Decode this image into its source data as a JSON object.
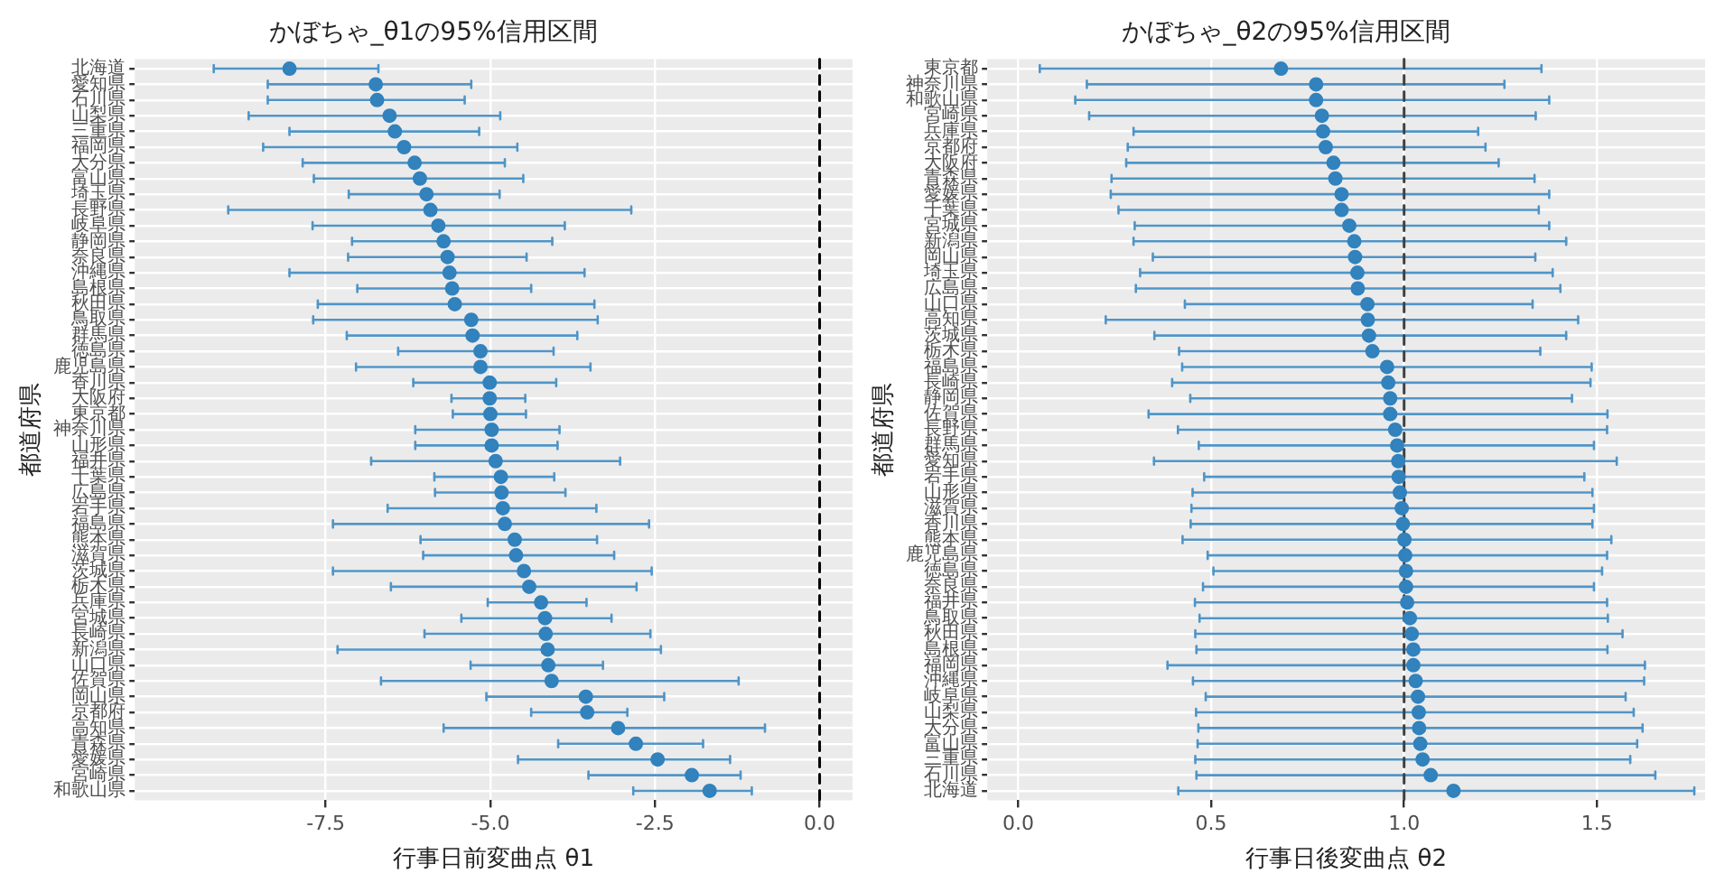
{
  "chart_data": [
    {
      "type": "scatter",
      "orientation": "horizontal",
      "title": "かぼちゃ_θ1の95%信用区間",
      "xlabel": "行事日前変曲点 θ1",
      "ylabel": "都道府県",
      "marker": "circle",
      "grid": true,
      "legend": false,
      "color": "#3182bd",
      "categories": [
        "北海道",
        "愛知県",
        "石川県",
        "山梨県",
        "三重県",
        "福岡県",
        "大分県",
        "富山県",
        "埼玉県",
        "長野県",
        "岐阜県",
        "静岡県",
        "奈良県",
        "沖縄県",
        "島根県",
        "秋田県",
        "鳥取県",
        "群馬県",
        "徳島県",
        "鹿児島県",
        "香川県",
        "大阪府",
        "東京都",
        "神奈川県",
        "山形県",
        "福井県",
        "千葉県",
        "広島県",
        "岩手県",
        "福島県",
        "熊本県",
        "滋賀県",
        "茨城県",
        "栃木県",
        "兵庫県",
        "宮城県",
        "長崎県",
        "新潟県",
        "山口県",
        "佐賀県",
        "岡山県",
        "京都府",
        "高知県",
        "青森県",
        "愛媛県",
        "宮崎県",
        "和歌山県"
      ],
      "values": [
        -8.05,
        -6.74,
        -6.72,
        -6.53,
        -6.45,
        -6.31,
        -6.15,
        -6.07,
        -5.97,
        -5.91,
        -5.79,
        -5.71,
        -5.65,
        -5.62,
        -5.58,
        -5.54,
        -5.29,
        -5.27,
        -5.15,
        -5.15,
        -5.01,
        -5.01,
        -5.0,
        -4.98,
        -4.98,
        -4.92,
        -4.84,
        -4.83,
        -4.81,
        -4.78,
        -4.63,
        -4.61,
        -4.49,
        -4.41,
        -4.23,
        -4.17,
        -4.16,
        -4.13,
        -4.12,
        -4.07,
        -3.55,
        -3.53,
        -3.06,
        -2.79,
        -2.46,
        -1.94,
        -1.67
      ],
      "errors": [
        [
          -9.2,
          -6.7
        ],
        [
          -8.38,
          -5.29
        ],
        [
          -8.38,
          -5.39
        ],
        [
          -8.67,
          -4.85
        ],
        [
          -8.05,
          -5.17
        ],
        [
          -8.45,
          -4.59
        ],
        [
          -7.85,
          -4.78
        ],
        [
          -7.68,
          -4.5
        ],
        [
          -7.15,
          -4.86
        ],
        [
          -8.98,
          -2.86
        ],
        [
          -7.7,
          -3.87
        ],
        [
          -7.1,
          -4.06
        ],
        [
          -7.16,
          -4.45
        ],
        [
          -8.05,
          -3.57
        ],
        [
          -7.02,
          -4.38
        ],
        [
          -7.62,
          -3.42
        ],
        [
          -7.69,
          -3.37
        ],
        [
          -7.18,
          -3.68
        ],
        [
          -6.4,
          -4.04
        ],
        [
          -7.04,
          -3.48
        ],
        [
          -6.17,
          -4.0
        ],
        [
          -5.59,
          -4.47
        ],
        [
          -5.57,
          -4.46
        ],
        [
          -6.14,
          -3.95
        ],
        [
          -6.14,
          -3.98
        ],
        [
          -6.81,
          -3.03
        ],
        [
          -5.85,
          -4.03
        ],
        [
          -5.84,
          -3.86
        ],
        [
          -6.56,
          -3.39
        ],
        [
          -7.39,
          -2.59
        ],
        [
          -6.06,
          -3.38
        ],
        [
          -6.02,
          -3.12
        ],
        [
          -7.39,
          -2.55
        ],
        [
          -6.51,
          -2.78
        ],
        [
          -5.04,
          -3.54
        ],
        [
          -5.44,
          -3.16
        ],
        [
          -6.0,
          -2.57
        ],
        [
          -7.32,
          -2.41
        ],
        [
          -5.3,
          -3.29
        ],
        [
          -6.66,
          -1.23
        ],
        [
          -5.06,
          -2.36
        ],
        [
          -4.38,
          -2.92
        ],
        [
          -5.71,
          -0.83
        ],
        [
          -3.97,
          -1.77
        ],
        [
          -4.58,
          -1.36
        ],
        [
          -3.51,
          -1.2
        ],
        [
          -2.83,
          -1.03
        ]
      ],
      "xlim": [
        -10.4,
        0.5
      ],
      "xticks": [
        {
          "value": -7.5,
          "label": "-7.5"
        },
        {
          "value": -5,
          "label": "-5.0"
        },
        {
          "value": -2.5,
          "label": "-2.5"
        },
        {
          "value": 0,
          "label": "0.0"
        }
      ],
      "ref_lines": [
        {
          "axis": "x",
          "value": 0,
          "color": "#000000",
          "line_style": "dashed"
        }
      ]
    },
    {
      "type": "scatter",
      "orientation": "horizontal",
      "title": "かぼちゃ_θ2の95%信用区間",
      "xlabel": "行事日後変曲点 θ2",
      "ylabel": "都道府県",
      "marker": "circle",
      "grid": true,
      "legend": false,
      "color": "#3182bd",
      "categories": [
        "東京都",
        "神奈川県",
        "和歌山県",
        "宮崎県",
        "兵庫県",
        "京都府",
        "大阪府",
        "青森県",
        "愛媛県",
        "千葉県",
        "宮城県",
        "新潟県",
        "岡山県",
        "埼玉県",
        "広島県",
        "山口県",
        "高知県",
        "茨城県",
        "栃木県",
        "福島県",
        "長崎県",
        "静岡県",
        "佐賀県",
        "長野県",
        "群馬県",
        "愛知県",
        "岩手県",
        "山形県",
        "滋賀県",
        "香川県",
        "熊本県",
        "鹿児島県",
        "徳島県",
        "奈良県",
        "福井県",
        "鳥取県",
        "秋田県",
        "島根県",
        "福岡県",
        "沖縄県",
        "岐阜県",
        "山梨県",
        "大分県",
        "富山県",
        "三重県",
        "石川県",
        "北海道"
      ],
      "values": [
        0.681,
        0.772,
        0.772,
        0.787,
        0.79,
        0.797,
        0.817,
        0.822,
        0.838,
        0.838,
        0.858,
        0.871,
        0.873,
        0.879,
        0.88,
        0.905,
        0.906,
        0.909,
        0.918,
        0.956,
        0.959,
        0.964,
        0.964,
        0.977,
        0.982,
        0.985,
        0.986,
        0.989,
        0.994,
        0.997,
        1.001,
        1.003,
        1.005,
        1.005,
        1.008,
        1.015,
        1.02,
        1.024,
        1.024,
        1.03,
        1.036,
        1.038,
        1.039,
        1.042,
        1.048,
        1.069,
        1.128
      ],
      "errors": [
        [
          0.056,
          1.356
        ],
        [
          0.178,
          1.26
        ],
        [
          0.148,
          1.376
        ],
        [
          0.184,
          1.341
        ],
        [
          0.299,
          1.192
        ],
        [
          0.284,
          1.211
        ],
        [
          0.28,
          1.245
        ],
        [
          0.242,
          1.338
        ],
        [
          0.24,
          1.376
        ],
        [
          0.26,
          1.349
        ],
        [
          0.302,
          1.376
        ],
        [
          0.299,
          1.42
        ],
        [
          0.349,
          1.34
        ],
        [
          0.316,
          1.385
        ],
        [
          0.305,
          1.405
        ],
        [
          0.432,
          1.333
        ],
        [
          0.227,
          1.451
        ],
        [
          0.353,
          1.42
        ],
        [
          0.417,
          1.353
        ],
        [
          0.425,
          1.486
        ],
        [
          0.399,
          1.483
        ],
        [
          0.446,
          1.435
        ],
        [
          0.338,
          1.527
        ],
        [
          0.414,
          1.526
        ],
        [
          0.468,
          1.492
        ],
        [
          0.352,
          1.551
        ],
        [
          0.482,
          1.467
        ],
        [
          0.452,
          1.488
        ],
        [
          0.449,
          1.492
        ],
        [
          0.447,
          1.488
        ],
        [
          0.426,
          1.537
        ],
        [
          0.491,
          1.526
        ],
        [
          0.506,
          1.513
        ],
        [
          0.479,
          1.492
        ],
        [
          0.458,
          1.526
        ],
        [
          0.47,
          1.528
        ],
        [
          0.459,
          1.566
        ],
        [
          0.462,
          1.527
        ],
        [
          0.387,
          1.624
        ],
        [
          0.453,
          1.622
        ],
        [
          0.486,
          1.574
        ],
        [
          0.461,
          1.595
        ],
        [
          0.467,
          1.618
        ],
        [
          0.465,
          1.604
        ],
        [
          0.459,
          1.586
        ],
        [
          0.462,
          1.651
        ],
        [
          0.415,
          1.752
        ]
      ],
      "xlim": [
        -0.08,
        1.78
      ],
      "xticks": [
        {
          "value": 0,
          "label": "0.0"
        },
        {
          "value": 0.5,
          "label": "0.5"
        },
        {
          "value": 1,
          "label": "1.0"
        },
        {
          "value": 1.5,
          "label": "1.5"
        }
      ],
      "ref_lines": [
        {
          "axis": "x",
          "value": 1,
          "color": "#404040",
          "line_style": "dashed"
        }
      ]
    }
  ]
}
